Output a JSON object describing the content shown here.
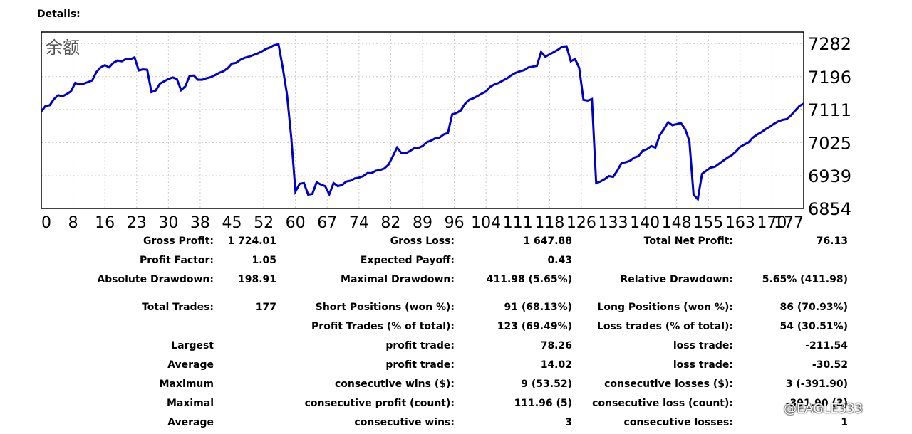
{
  "header": {
    "title": "Details:"
  },
  "chart_data": {
    "type": "line",
    "title": "余额",
    "y_ticks": [
      "7282",
      "7196",
      "7111",
      "7025",
      "6939",
      "6854"
    ],
    "y_tick_values": [
      7282,
      7196,
      7111,
      7025,
      6939,
      6854
    ],
    "x_ticks": [
      "0",
      "8",
      "16",
      "23",
      "30",
      "38",
      "45",
      "52",
      "60",
      "67",
      "74",
      "82",
      "89",
      "96",
      "104",
      "111",
      "118",
      "126",
      "133",
      "140",
      "148",
      "155",
      "163",
      "170",
      "177"
    ],
    "x_range": [
      0,
      180
    ],
    "y_range": [
      6854,
      7312
    ],
    "color": "#0000cc",
    "series": [
      {
        "name": "balance",
        "points": [
          [
            0,
            7106
          ],
          [
            1,
            7120
          ],
          [
            2,
            7122
          ],
          [
            3,
            7138
          ],
          [
            4,
            7148
          ],
          [
            5,
            7145
          ],
          [
            6,
            7151
          ],
          [
            7,
            7158
          ],
          [
            8,
            7180
          ],
          [
            9,
            7176
          ],
          [
            10,
            7178
          ],
          [
            11,
            7182
          ],
          [
            12,
            7186
          ],
          [
            13,
            7208
          ],
          [
            14,
            7220
          ],
          [
            15,
            7226
          ],
          [
            16,
            7220
          ],
          [
            17,
            7232
          ],
          [
            18,
            7238
          ],
          [
            19,
            7236
          ],
          [
            20,
            7242
          ],
          [
            21,
            7241
          ],
          [
            22,
            7246
          ],
          [
            23,
            7212
          ],
          [
            24,
            7215
          ],
          [
            25,
            7214
          ],
          [
            26,
            7156
          ],
          [
            27,
            7160
          ],
          [
            28,
            7178
          ],
          [
            29,
            7184
          ],
          [
            30,
            7190
          ],
          [
            31,
            7194
          ],
          [
            32,
            7190
          ],
          [
            33,
            7161
          ],
          [
            34,
            7171
          ],
          [
            35,
            7198
          ],
          [
            36,
            7199
          ],
          [
            37,
            7188
          ],
          [
            38,
            7188
          ],
          [
            39,
            7192
          ],
          [
            40,
            7195
          ],
          [
            41,
            7200
          ],
          [
            42,
            7206
          ],
          [
            43,
            7210
          ],
          [
            44,
            7218
          ],
          [
            45,
            7230
          ],
          [
            46,
            7232
          ],
          [
            47,
            7240
          ],
          [
            48,
            7245
          ],
          [
            49,
            7248
          ],
          [
            50,
            7252
          ],
          [
            51,
            7256
          ],
          [
            52,
            7261
          ],
          [
            53,
            7268
          ],
          [
            54,
            7272
          ],
          [
            55,
            7278
          ],
          [
            56,
            7280
          ],
          [
            57,
            7220
          ],
          [
            58,
            7150
          ],
          [
            59,
            7040
          ],
          [
            60,
            6898
          ],
          [
            61,
            6918
          ],
          [
            62,
            6920
          ],
          [
            63,
            6890
          ],
          [
            64,
            6892
          ],
          [
            65,
            6922
          ],
          [
            66,
            6916
          ],
          [
            67,
            6912
          ],
          [
            68,
            6891
          ],
          [
            69,
            6920
          ],
          [
            70,
            6912
          ],
          [
            71,
            6915
          ],
          [
            72,
            6924
          ],
          [
            73,
            6926
          ],
          [
            74,
            6932
          ],
          [
            75,
            6934
          ],
          [
            76,
            6938
          ],
          [
            77,
            6946
          ],
          [
            78,
            6946
          ],
          [
            79,
            6952
          ],
          [
            80,
            6954
          ],
          [
            81,
            6958
          ],
          [
            82,
            6968
          ],
          [
            83,
            6990
          ],
          [
            84,
            7012
          ],
          [
            85,
            6998
          ],
          [
            86,
            6997
          ],
          [
            87,
            7003
          ],
          [
            88,
            7010
          ],
          [
            89,
            7011
          ],
          [
            90,
            7016
          ],
          [
            91,
            7026
          ],
          [
            92,
            7030
          ],
          [
            93,
            7036
          ],
          [
            94,
            7038
          ],
          [
            95,
            7046
          ],
          [
            96,
            7050
          ],
          [
            97,
            7098
          ],
          [
            98,
            7102
          ],
          [
            99,
            7108
          ],
          [
            100,
            7125
          ],
          [
            101,
            7136
          ],
          [
            102,
            7140
          ],
          [
            103,
            7146
          ],
          [
            104,
            7152
          ],
          [
            105,
            7158
          ],
          [
            106,
            7170
          ],
          [
            107,
            7176
          ],
          [
            108,
            7180
          ],
          [
            109,
            7186
          ],
          [
            110,
            7192
          ],
          [
            111,
            7200
          ],
          [
            112,
            7206
          ],
          [
            113,
            7210
          ],
          [
            114,
            7213
          ],
          [
            115,
            7220
          ],
          [
            116,
            7222
          ],
          [
            117,
            7224
          ],
          [
            118,
            7260
          ],
          [
            119,
            7248
          ],
          [
            120,
            7254
          ],
          [
            121,
            7260
          ],
          [
            122,
            7266
          ],
          [
            123,
            7274
          ],
          [
            124,
            7275
          ],
          [
            125,
            7236
          ],
          [
            126,
            7242
          ],
          [
            127,
            7219
          ],
          [
            128,
            7136
          ],
          [
            129,
            7134
          ],
          [
            130,
            7138
          ],
          [
            131,
            6920
          ],
          [
            132,
            6924
          ],
          [
            133,
            6930
          ],
          [
            134,
            6938
          ],
          [
            135,
            6936
          ],
          [
            136,
            6952
          ],
          [
            137,
            6972
          ],
          [
            138,
            6974
          ],
          [
            139,
            6978
          ],
          [
            140,
            6986
          ],
          [
            141,
            6990
          ],
          [
            142,
            7004
          ],
          [
            143,
            7008
          ],
          [
            144,
            7016
          ],
          [
            145,
            7012
          ],
          [
            146,
            7044
          ],
          [
            147,
            7060
          ],
          [
            148,
            7078
          ],
          [
            149,
            7070
          ],
          [
            150,
            7073
          ],
          [
            151,
            7076
          ],
          [
            152,
            7060
          ],
          [
            153,
            7030
          ],
          [
            154,
            6890
          ],
          [
            155,
            6878
          ],
          [
            156,
            6944
          ],
          [
            157,
            6952
          ],
          [
            158,
            6960
          ],
          [
            159,
            6962
          ],
          [
            160,
            6970
          ],
          [
            161,
            6978
          ],
          [
            162,
            6986
          ],
          [
            163,
            6992
          ],
          [
            164,
            7002
          ],
          [
            165,
            7014
          ],
          [
            166,
            7020
          ],
          [
            167,
            7026
          ],
          [
            168,
            7038
          ],
          [
            169,
            7046
          ],
          [
            170,
            7052
          ],
          [
            171,
            7060
          ],
          [
            172,
            7066
          ],
          [
            173,
            7074
          ],
          [
            174,
            7080
          ],
          [
            175,
            7084
          ],
          [
            176,
            7086
          ],
          [
            177,
            7096
          ],
          [
            178,
            7108
          ],
          [
            179,
            7120
          ],
          [
            180,
            7126
          ]
        ]
      }
    ]
  },
  "stats": {
    "gross_profit": {
      "label": "Gross Profit:",
      "value": "1 724.01"
    },
    "gross_loss": {
      "label": "Gross Loss:",
      "value": "1 647.88"
    },
    "total_net_profit": {
      "label": "Total Net Profit:",
      "value": "76.13"
    },
    "profit_factor": {
      "label": "Profit Factor:",
      "value": "1.05"
    },
    "expected_payoff": {
      "label": "Expected Payoff:",
      "value": "0.43"
    },
    "absolute_drawdown": {
      "label": "Absolute Drawdown:",
      "value": "198.91"
    },
    "maximal_drawdown": {
      "label": "Maximal Drawdown:",
      "value": "411.98 (5.65%)"
    },
    "relative_drawdown": {
      "label": "Relative Drawdown:",
      "value": "5.65% (411.98)"
    },
    "total_trades": {
      "label": "Total Trades:",
      "value": "177"
    },
    "short_positions": {
      "label": "Short Positions (won %):",
      "value": "91 (68.13%)"
    },
    "long_positions": {
      "label": "Long Positions (won %):",
      "value": "86 (70.93%)"
    },
    "profit_trades": {
      "label": "Profit Trades (% of total):",
      "value": "123 (69.49%)"
    },
    "loss_trades": {
      "label": "Loss trades (% of total):",
      "value": "54 (30.51%)"
    },
    "largest": {
      "label": "Largest",
      "profit_label": "profit trade:",
      "profit_value": "78.26",
      "loss_label": "loss trade:",
      "loss_value": "-211.54"
    },
    "average": {
      "label": "Average",
      "profit_label": "profit trade:",
      "profit_value": "14.02",
      "loss_label": "loss trade:",
      "loss_value": "-30.52"
    },
    "maximum": {
      "label": "Maximum",
      "profit_label": "consecutive wins ($):",
      "profit_value": "9 (53.52)",
      "loss_label": "consecutive losses ($):",
      "loss_value": "3 (-391.90)"
    },
    "maximal": {
      "label": "Maximal",
      "profit_label": "consecutive profit (count):",
      "profit_value": "111.96 (5)",
      "loss_label": "consecutive loss (count):",
      "loss_value": "-391.90 (3)"
    },
    "average_consec": {
      "label": "Average",
      "profit_label": "consecutive wins:",
      "profit_value": "3",
      "loss_label": "consecutive losses:",
      "loss_value": "1"
    }
  },
  "watermark": "@EAGLE333"
}
